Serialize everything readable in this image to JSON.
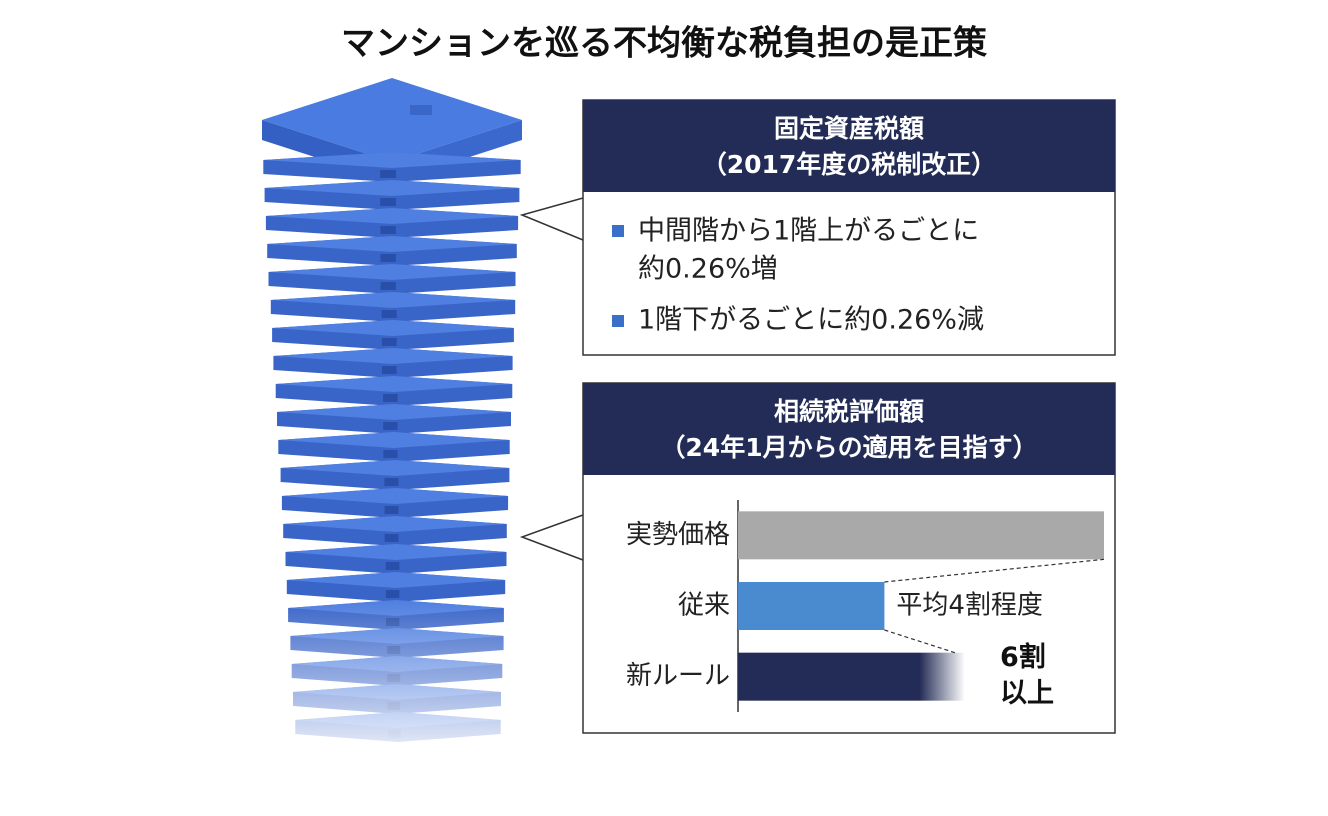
{
  "title": "マンションを巡る不均衡な税負担の是正策",
  "panels": [
    {
      "header": [
        "固定資産税額",
        "（2017年度の税制改正）"
      ],
      "bullets": [
        [
          "中間階から1階上がるごとに",
          "約0.26%増"
        ],
        [
          "1階下がるごとに約0.26%減"
        ]
      ]
    },
    {
      "header": [
        "相続税評価額",
        "（24年1月からの適用を目指す）"
      ]
    }
  ],
  "chart_data": {
    "type": "bar",
    "orientation": "horizontal",
    "categories": [
      "実勢価格",
      "従来",
      "新ルール"
    ],
    "values": [
      100,
      40,
      62
    ],
    "colors": [
      "#a9a9a9",
      "#4a8bd0",
      "#232c56"
    ],
    "xlim": [
      0,
      100
    ],
    "annotations": [
      "平均4割程度",
      "6割",
      "以上"
    ]
  }
}
